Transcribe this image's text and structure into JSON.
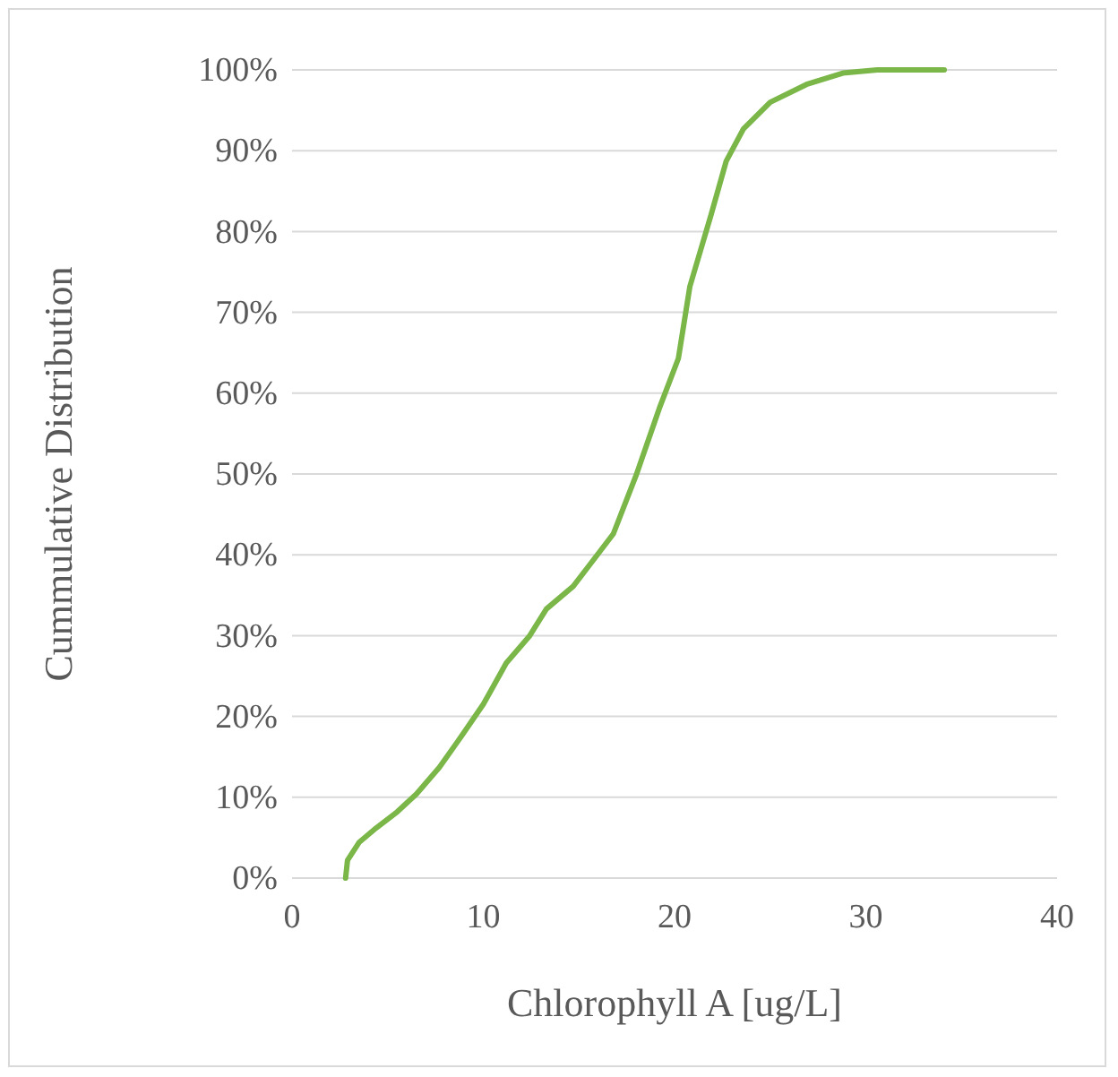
{
  "chart_data": {
    "type": "line",
    "xlabel": "Chlorophyll A [ug/L]",
    "ylabel": "Cummulative Distribution",
    "x": [
      2.8,
      2.9,
      3.5,
      4.4,
      5.5,
      6.5,
      7.7,
      8.9,
      10.0,
      11.2,
      12.4,
      13.3,
      14.7,
      15.8,
      16.8,
      18.0,
      19.2,
      20.2,
      20.8,
      21.9,
      22.7,
      23.6,
      25.0,
      26.9,
      28.8,
      30.6,
      34.1
    ],
    "series": [
      {
        "color": "#7ab648",
        "values": [
          0,
          2.2,
          4.4,
          6.2,
          8.2,
          10.4,
          13.7,
          17.7,
          21.5,
          26.6,
          29.9,
          33.3,
          36.1,
          39.5,
          42.6,
          49.9,
          58.1,
          64.3,
          73.2,
          82,
          88.7,
          92.7,
          96,
          98.2,
          99.6,
          100,
          100
        ]
      }
    ],
    "xlim": [
      0,
      40
    ],
    "xticks": [
      0,
      10,
      20,
      30,
      40
    ],
    "ylim": [
      0,
      100
    ],
    "yticks": [
      {
        "value": 0,
        "label": "0%"
      },
      {
        "value": 10,
        "label": "10%"
      },
      {
        "value": 20,
        "label": "20%"
      },
      {
        "value": 30,
        "label": "30%"
      },
      {
        "value": 40,
        "label": "40%"
      },
      {
        "value": 50,
        "label": "50%"
      },
      {
        "value": 60,
        "label": "60%"
      },
      {
        "value": 70,
        "label": "70%"
      },
      {
        "value": 80,
        "label": "80%"
      },
      {
        "value": 90,
        "label": "90%"
      },
      {
        "value": 100,
        "label": "100%"
      }
    ],
    "grid": "y",
    "marker": "none",
    "line_style": "solid"
  }
}
